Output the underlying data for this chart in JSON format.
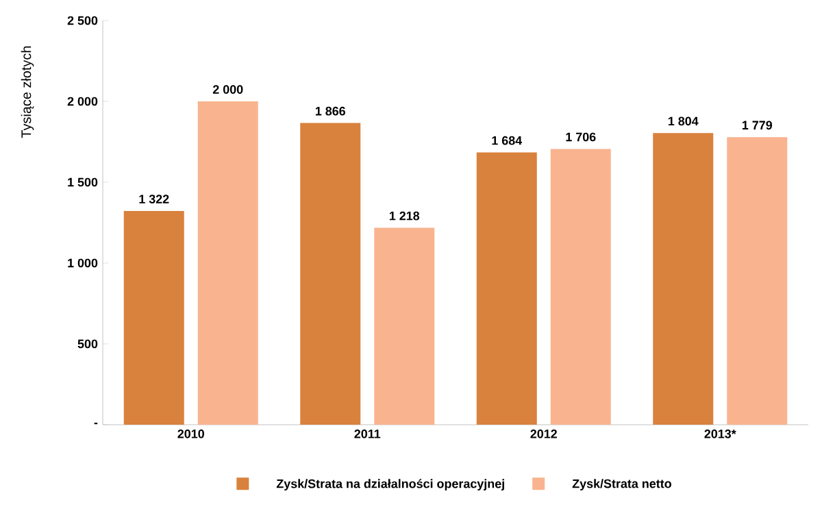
{
  "chart_data": {
    "type": "bar",
    "ylabel": "Tysiące złotych",
    "categories": [
      "2010",
      "2011",
      "2012",
      "2013*"
    ],
    "series": [
      {
        "name": "Zysk/Strata na działalności operacyjnej",
        "color": "#d9823d",
        "values": [
          1322,
          1866,
          1684,
          1804
        ],
        "value_labels": [
          "1 322",
          "1 866",
          "1 684",
          "1 804"
        ]
      },
      {
        "name": "Zysk/Strata netto",
        "color": "#f9b48f",
        "values": [
          2000,
          1218,
          1706,
          1779
        ],
        "value_labels": [
          "2 000",
          "1 218",
          "1 706",
          "1 779"
        ]
      }
    ],
    "ylim": [
      0,
      2500
    ],
    "yticks": [
      {
        "value": 0,
        "label": "-"
      },
      500,
      {
        "value": 1000,
        "label": "1 000"
      },
      {
        "value": 1500,
        "label": "1 500"
      },
      {
        "value": 2000,
        "label": "2 000"
      },
      {
        "value": 2500,
        "label": "2 500"
      }
    ],
    "legend": "bottom",
    "grid": false
  }
}
